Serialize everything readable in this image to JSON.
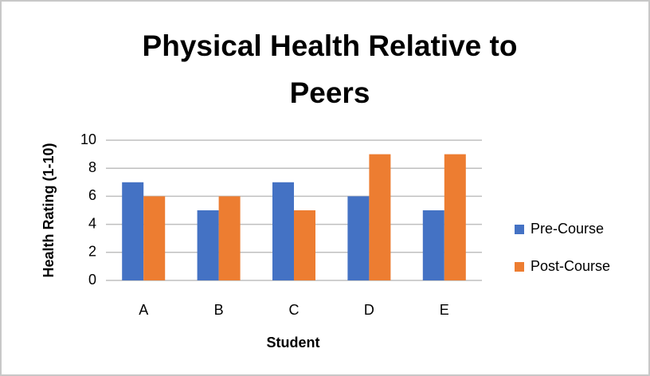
{
  "chart_data": {
    "type": "bar",
    "title": "Physical Health Relative to Peers",
    "x_label": "Student",
    "y_label": "Health Rating (1-10)",
    "categories": [
      "A",
      "B",
      "C",
      "D",
      "E"
    ],
    "series": [
      {
        "name": "Pre-Course",
        "color": "#4472c4",
        "values": [
          7,
          5,
          7,
          6,
          5
        ]
      },
      {
        "name": "Post-Course",
        "color": "#ed7d31",
        "values": [
          6,
          6,
          5,
          9,
          9
        ]
      }
    ],
    "ylim": [
      0,
      10
    ],
    "yticks": [
      0,
      2,
      4,
      6,
      8,
      10
    ],
    "grid": true,
    "legend": "right"
  }
}
